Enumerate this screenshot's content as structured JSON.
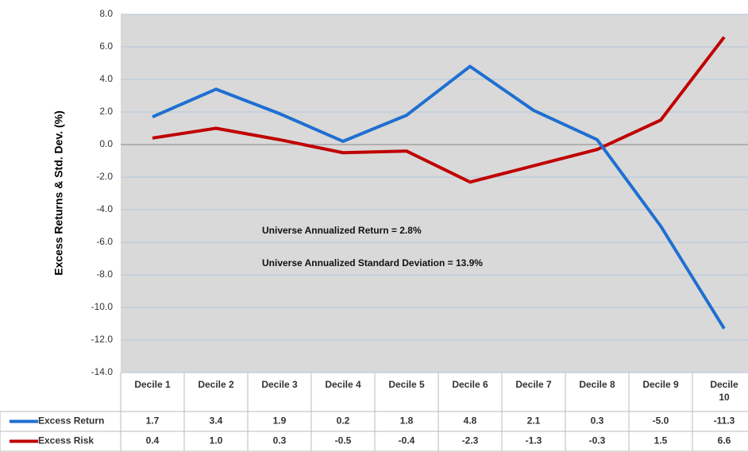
{
  "chart_data": {
    "type": "line",
    "y_axis_label": "Excess Returns & Std. Dev. (%)",
    "categories": [
      "Decile 1",
      "Decile 2",
      "Decile 3",
      "Decile 4",
      "Decile 5",
      "Decile 6",
      "Decile 7",
      "Decile 8",
      "Decile 9",
      "Decile 10"
    ],
    "series": [
      {
        "name": "Excess Return",
        "color": "#1f6fd1",
        "values": [
          1.7,
          3.4,
          1.9,
          0.2,
          1.8,
          4.8,
          2.1,
          0.3,
          -5.0,
          -11.3
        ],
        "value_labels": [
          "1.7",
          "3.4",
          "1.9",
          "0.2",
          "1.8",
          "4.8",
          "2.1",
          "0.3",
          "-5.0",
          "-11.3"
        ]
      },
      {
        "name": "Excess Risk",
        "color": "#c00000",
        "values": [
          0.4,
          1.0,
          0.3,
          -0.5,
          -0.4,
          -2.3,
          -1.3,
          -0.3,
          1.5,
          6.6
        ],
        "value_labels": [
          "0.4",
          "1.0",
          "0.3",
          "-0.5",
          "-0.4",
          "-2.3",
          "-1.3",
          "-0.3",
          "1.5",
          "6.6"
        ]
      }
    ],
    "annotations": [
      "Universe Annualized Return = 2.8%",
      "Universe Annualized Standard Deviation = 13.9%"
    ],
    "ylim": [
      -14,
      8
    ],
    "yticks": [
      {
        "value": -14,
        "label": "-14.0"
      },
      {
        "value": -12,
        "label": "-12.0"
      },
      {
        "value": -10,
        "label": "-10.0"
      },
      {
        "value": -8,
        "label": "-8.0"
      },
      {
        "value": -6,
        "label": "-6.0"
      },
      {
        "value": -4,
        "label": "-4.0"
      },
      {
        "value": -2,
        "label": "-2.0"
      },
      {
        "value": 0,
        "label": "0.0"
      },
      {
        "value": 2,
        "label": "2.0"
      },
      {
        "value": 4,
        "label": "4.0"
      },
      {
        "value": 6,
        "label": "6.0"
      },
      {
        "value": 8,
        "label": "8.0"
      }
    ],
    "grid": true,
    "background": "#d9d9d9"
  }
}
